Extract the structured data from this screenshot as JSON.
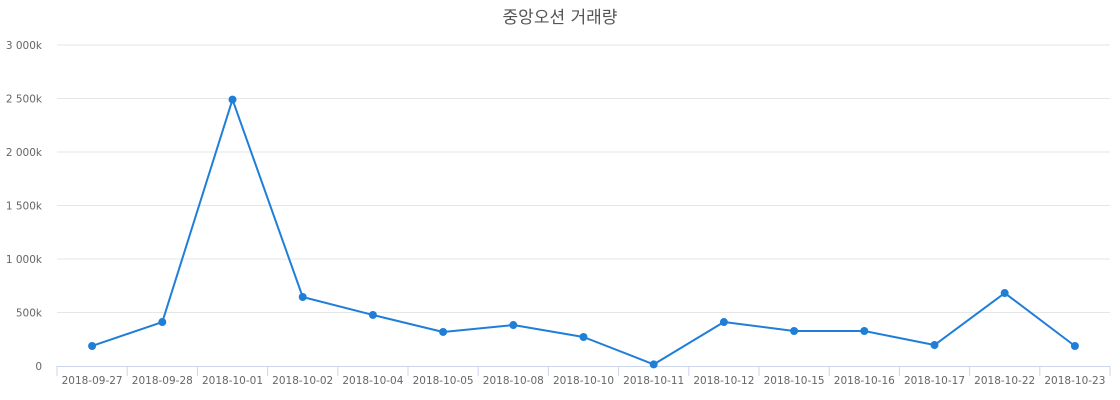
{
  "chart_data": {
    "type": "line",
    "title": "중앙오션 거래량",
    "xlabel": "",
    "ylabel": "",
    "ylim": [
      0,
      3000000
    ],
    "yticks": [
      "0",
      "500k",
      "1 000k",
      "1 500k",
      "2 000k",
      "2 500k",
      "3 000k"
    ],
    "grid": true,
    "legend": null,
    "categories": [
      "2018-09-27",
      "2018-09-28",
      "2018-10-01",
      "2018-10-02",
      "2018-10-04",
      "2018-10-05",
      "2018-10-08",
      "2018-10-10",
      "2018-10-11",
      "2018-10-12",
      "2018-10-15",
      "2018-10-16",
      "2018-10-17",
      "2018-10-22",
      "2018-10-23"
    ],
    "series": [
      {
        "name": "거래량",
        "color": "#1f7fd8",
        "values": [
          187000,
          411000,
          2490000,
          645000,
          477000,
          318000,
          383000,
          271000,
          15000,
          411000,
          327000,
          327000,
          196000,
          682000,
          187000
        ]
      }
    ]
  }
}
